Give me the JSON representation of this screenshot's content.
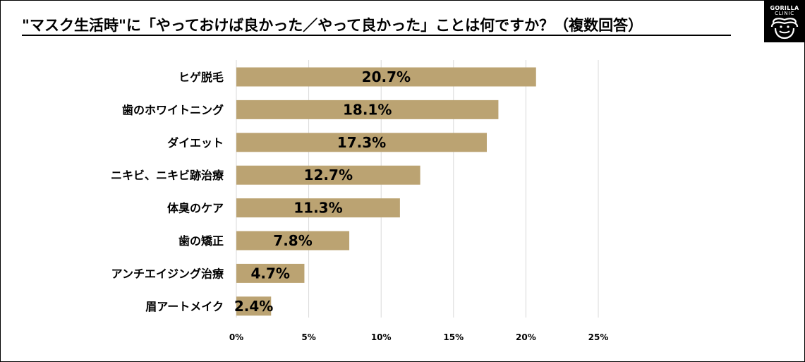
{
  "header": {
    "title": "\"マスク生活時\"に「やっておけば良かった／やって良かった」ことは何ですか？（複数回答）"
  },
  "logo": {
    "line1": "GORILLA",
    "line2": "CLINIC",
    "icon": "gorilla-icon"
  },
  "colors": {
    "bar": "#bba372",
    "grid": "#d9d9d9"
  },
  "chart_data": {
    "type": "bar",
    "orientation": "horizontal",
    "title": "\"マスク生活時\"に「やっておけば良かった／やって良かった」ことは何ですか？（複数回答）",
    "categories": [
      "ヒゲ脱毛",
      "歯のホワイトニング",
      "ダイエット",
      "ニキビ、ニキビ跡治療",
      "体臭のケア",
      "歯の矯正",
      "アンチエイジング治療",
      "眉アートメイク"
    ],
    "values": [
      20.7,
      18.1,
      17.3,
      12.7,
      11.3,
      7.8,
      4.7,
      2.4
    ],
    "value_labels": [
      "20.7%",
      "18.1%",
      "17.3%",
      "12.7%",
      "11.3%",
      "7.8%",
      "4.7%",
      "2.4%"
    ],
    "xlim": [
      0,
      25
    ],
    "xticks": [
      0,
      5,
      10,
      15,
      20,
      25
    ],
    "xtick_labels": [
      "0%",
      "5%",
      "10%",
      "15%",
      "20%",
      "25%"
    ],
    "grid": true,
    "xlabel": "",
    "ylabel": ""
  }
}
